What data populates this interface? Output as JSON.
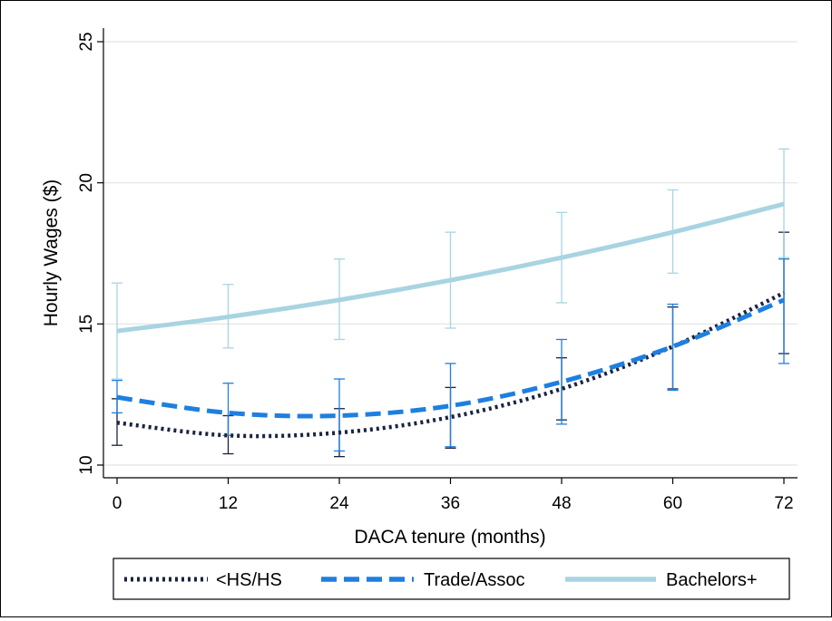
{
  "chart_data": {
    "type": "line",
    "title": "",
    "xlabel": "DACA tenure (months)",
    "ylabel": "Hourly Wages ($)",
    "xlim": [
      0,
      72
    ],
    "ylim": [
      10,
      25
    ],
    "x_ticks": [
      0,
      12,
      24,
      36,
      48,
      60,
      72
    ],
    "y_ticks": [
      10,
      15,
      20,
      25
    ],
    "grid": true,
    "legend_position": "bottom",
    "x": [
      0,
      12,
      24,
      36,
      48,
      60,
      72
    ],
    "series": [
      {
        "name": "<HS/HS",
        "style": "dotted",
        "color": "#1c2340",
        "values": [
          11.5,
          11.05,
          11.15,
          11.7,
          12.7,
          14.2,
          16.1
        ],
        "ci_low": [
          10.7,
          10.4,
          10.3,
          10.6,
          11.6,
          12.7,
          13.95
        ],
        "ci_high": [
          12.35,
          11.75,
          12.0,
          12.75,
          13.8,
          15.6,
          18.25
        ]
      },
      {
        "name": "Trade/Assoc",
        "style": "dashed",
        "color": "#1e7fe0",
        "values": [
          12.4,
          11.85,
          11.75,
          12.1,
          12.95,
          14.2,
          15.85
        ],
        "ci_low": [
          11.85,
          11.05,
          10.5,
          10.65,
          11.45,
          12.65,
          13.6
        ],
        "ci_high": [
          13.0,
          12.9,
          13.05,
          13.6,
          14.45,
          15.7,
          17.3
        ]
      },
      {
        "name": "Bachelors+",
        "style": "solid",
        "color": "#a8d4e2",
        "values": [
          14.75,
          15.25,
          15.85,
          16.55,
          17.35,
          18.25,
          19.25
        ],
        "ci_low": [
          13.05,
          14.15,
          14.45,
          14.85,
          15.75,
          16.8,
          17.35
        ],
        "ci_high": [
          16.45,
          16.4,
          17.3,
          18.25,
          18.95,
          19.75,
          21.2
        ]
      }
    ]
  }
}
